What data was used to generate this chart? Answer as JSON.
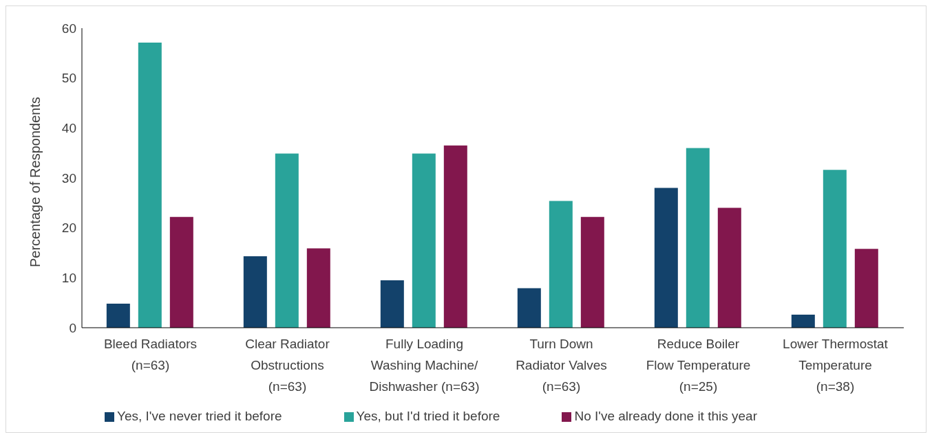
{
  "chart_data": {
    "type": "bar",
    "ylabel": "Percentage of Respondents",
    "categories": [
      "Bleed Radiators (n=63)",
      "Clear Radiator Obstructions (n=63)",
      "Fully Loading Washing Machine/ Dishwasher (n=63)",
      "Turn Down Radiator Valves (n=63)",
      "Reduce Boiler Flow Temperature (n=25)",
      "Lower Thermostat Temperature (n=38)"
    ],
    "series": [
      {
        "name": "Yes, I've never tried it before",
        "color": "#13426b",
        "values": [
          4.8,
          14.3,
          9.5,
          7.9,
          28,
          2.6
        ]
      },
      {
        "name": "Yes, but I'd tried it before",
        "color": "#29a39a",
        "values": [
          57.1,
          34.9,
          34.9,
          25.4,
          36,
          31.6
        ]
      },
      {
        "name": "No I've already done it this year",
        "color": "#82174d",
        "values": [
          22.2,
          15.9,
          36.5,
          22.2,
          24,
          15.8
        ]
      }
    ],
    "ylim": [
      0,
      60
    ],
    "yticks": [
      0,
      10,
      20,
      30,
      40,
      50,
      60
    ],
    "grid": false,
    "legend": "bottom"
  }
}
